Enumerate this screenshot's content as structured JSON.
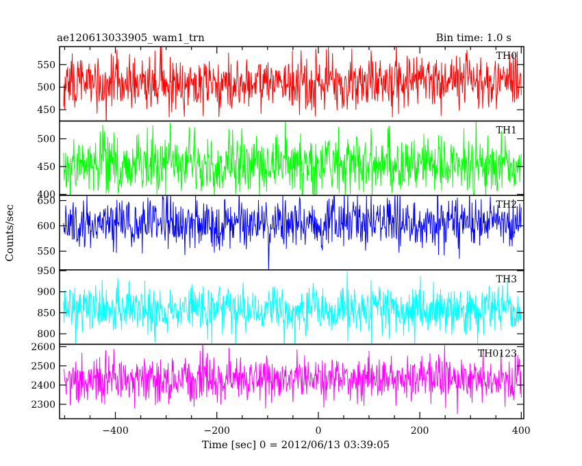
{
  "header": {
    "left_title": "ae120613033905_wam1_trn",
    "right_title": "Bin time: 1.0 s"
  },
  "axes": {
    "xlabel": "Time [sec] 0 = 2012/06/13 03:39:05",
    "ylabel": "Counts/sec"
  },
  "chart_data": {
    "type": "line",
    "x_range": [
      -510,
      405
    ],
    "x_ticks": [
      -400,
      -200,
      0,
      200,
      400
    ],
    "x_tick_labels": [
      "−400",
      "−200",
      "0",
      "200",
      "400"
    ],
    "x_data_start": -502,
    "x_data_end": 400,
    "bin_seconds": 1.0,
    "panels": [
      {
        "name": "TH0",
        "color": "#ff0000",
        "ylim": [
          425,
          590
        ],
        "ticks": [
          450,
          500,
          550
        ],
        "mean": 510,
        "sd": 30
      },
      {
        "name": "TH1",
        "color": "#00ff00",
        "ylim": [
          398,
          532
        ],
        "ticks": [
          400,
          450,
          500
        ],
        "mean": 455,
        "sd": 27
      },
      {
        "name": "TH2",
        "color": "#0000ff",
        "ylim": [
          513,
          660
        ],
        "ticks": [
          550,
          600,
          650
        ],
        "mean": 605,
        "sd": 25
      },
      {
        "name": "TH3",
        "color": "#00ffff",
        "ylim": [
          775,
          952
        ],
        "ticks": [
          800,
          850,
          900,
          950
        ],
        "mean": 860,
        "sd": 30
      },
      {
        "name": "TH0123",
        "color": "#ff00ff",
        "ylim": [
          2225,
          2612
        ],
        "ticks": [
          2300,
          2400,
          2500,
          2600
        ],
        "mean": 2430,
        "sd": 60
      }
    ]
  }
}
